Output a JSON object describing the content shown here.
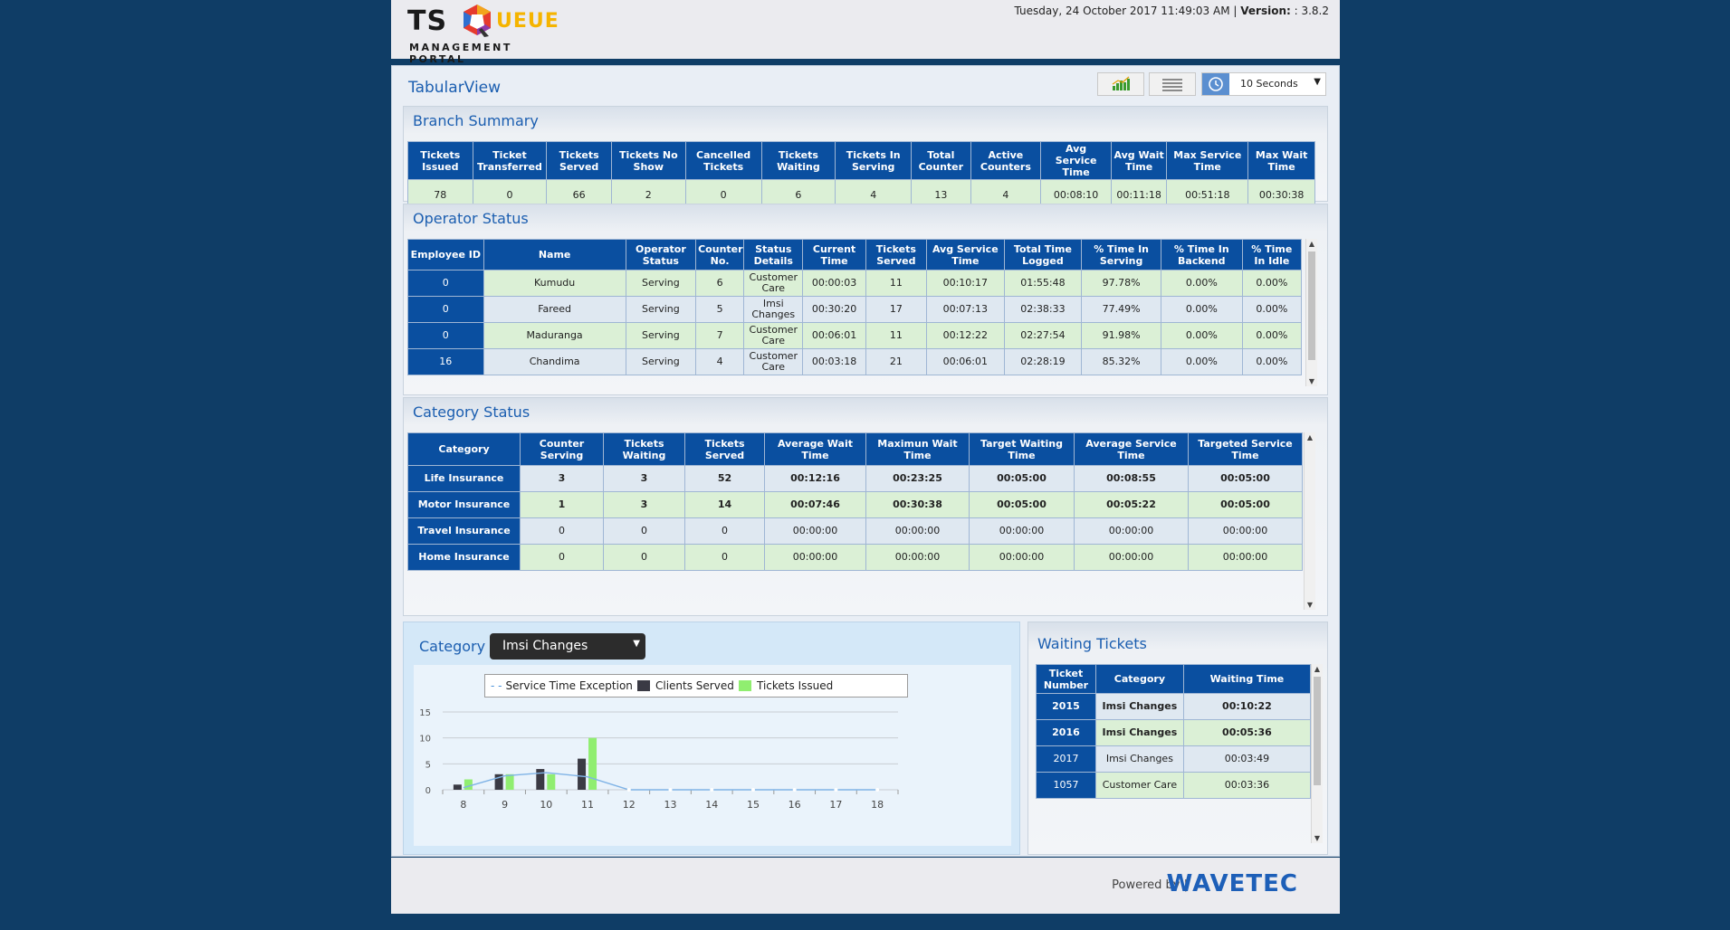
{
  "header": {
    "logo": {
      "ts": "TS",
      "queue_rest": "UEUE",
      "subtitle": "MANAGEMENT PORTAL"
    },
    "datetime": "Tuesday, 24 October 2017 11:49:03 AM",
    "separator": "|",
    "version_label": "Version:",
    "version_value": ": 3.8.2"
  },
  "toolbar": {
    "view_title": "TabularView",
    "chart_icon": "bar-chart-icon",
    "list_icon": "list-icon",
    "clock_icon": "clock-icon",
    "refresh_interval": "10 Seconds"
  },
  "branch_summary": {
    "title": "Branch Summary",
    "headers": [
      "Tickets Issued",
      "Ticket Transferred",
      "Tickets Served",
      "Tickets No Show",
      "Cancelled Tickets",
      "Tickets Waiting",
      "Tickets In Serving",
      "Total Counter",
      "Active Counters",
      "Avg Service Time",
      "Avg Wait Time",
      "Max Service Time",
      "Max Wait Time"
    ],
    "values": [
      "78",
      "0",
      "66",
      "2",
      "0",
      "6",
      "4",
      "13",
      "4",
      "00:08:10",
      "00:11:18",
      "00:51:18",
      "00:30:38"
    ]
  },
  "operator_status": {
    "title": "Operator Status",
    "headers": [
      "Employee ID",
      "Name",
      "Operator Status",
      "Counter No.",
      "Status Details",
      "Current Time",
      "Tickets Served",
      "Avg Service Time",
      "Total Time Logged",
      "% Time In Serving",
      "% Time In Backend",
      "% Time In Idle"
    ],
    "rows": [
      [
        "0",
        "Kumudu",
        "Serving",
        "6",
        "Customer Care",
        "00:00:03",
        "11",
        "00:10:17",
        "01:55:48",
        "97.78%",
        "0.00%",
        "0.00%"
      ],
      [
        "0",
        "Fareed",
        "Serving",
        "5",
        "Imsi Changes",
        "00:30:20",
        "17",
        "00:07:13",
        "02:38:33",
        "77.49%",
        "0.00%",
        "0.00%"
      ],
      [
        "0",
        "Maduranga",
        "Serving",
        "7",
        "Customer Care",
        "00:06:01",
        "11",
        "00:12:22",
        "02:27:54",
        "91.98%",
        "0.00%",
        "0.00%"
      ],
      [
        "16",
        "Chandima",
        "Serving",
        "4",
        "Customer Care",
        "00:03:18",
        "21",
        "00:06:01",
        "02:28:19",
        "85.32%",
        "0.00%",
        "0.00%"
      ]
    ]
  },
  "category_status": {
    "title": "Category Status",
    "headers": [
      "Category",
      "Counter Serving",
      "Tickets Waiting",
      "Tickets Served",
      "Average Wait Time",
      "Maximun Wait Time",
      "Target Waiting Time",
      "Average Service Time",
      "Targeted Service Time"
    ],
    "rows": [
      [
        "Life Insurance",
        "3",
        "3",
        "52",
        "00:12:16",
        "00:23:25",
        "00:05:00",
        "00:08:55",
        "00:05:00"
      ],
      [
        "Motor Insurance",
        "1",
        "3",
        "14",
        "00:07:46",
        "00:30:38",
        "00:05:00",
        "00:05:22",
        "00:05:00"
      ],
      [
        "Travel Insurance",
        "0",
        "0",
        "0",
        "00:00:00",
        "00:00:00",
        "00:00:00",
        "00:00:00",
        "00:00:00"
      ],
      [
        "Home Insurance",
        "0",
        "0",
        "0",
        "00:00:00",
        "00:00:00",
        "00:00:00",
        "00:00:00",
        "00:00:00"
      ]
    ]
  },
  "category_chart": {
    "label": "Category",
    "selected": "Imsi Changes"
  },
  "chart_data": {
    "type": "bar",
    "categories": [
      "8",
      "9",
      "10",
      "11",
      "12",
      "13",
      "14",
      "15",
      "16",
      "17",
      "18"
    ],
    "ylim": [
      0,
      15
    ],
    "yticks": [
      "0",
      "5",
      "10",
      "15"
    ],
    "legend_position": "top",
    "series": [
      {
        "name": "Service Time Exception",
        "kind": "line",
        "color": "#7fb3e6",
        "values": [
          0.4,
          2.7,
          3.3,
          2.5,
          0,
          0,
          0,
          0,
          0,
          0,
          0
        ]
      },
      {
        "name": "Clients Served",
        "kind": "bar",
        "color": "#3a3a44",
        "values": [
          1,
          3,
          4,
          6,
          0,
          0,
          0,
          0,
          0,
          0,
          0
        ]
      },
      {
        "name": "Tickets Issued",
        "kind": "bar",
        "color": "#90ee70",
        "values": [
          2,
          3,
          3,
          10,
          0,
          0,
          0,
          0,
          0,
          0,
          0
        ]
      }
    ]
  },
  "waiting_tickets": {
    "title": "Waiting Tickets",
    "headers": [
      "Ticket Number",
      "Category",
      "Waiting Time"
    ],
    "rows": [
      [
        "2015",
        "Imsi Changes",
        "00:10:22"
      ],
      [
        "2016",
        "Imsi Changes",
        "00:05:36"
      ],
      [
        "2017",
        "Imsi Changes",
        "00:03:49"
      ],
      [
        "1057",
        "Customer Care",
        "00:03:36"
      ]
    ]
  },
  "footer": {
    "powered_by": "Powered by |",
    "brand": "WAVETEC"
  }
}
